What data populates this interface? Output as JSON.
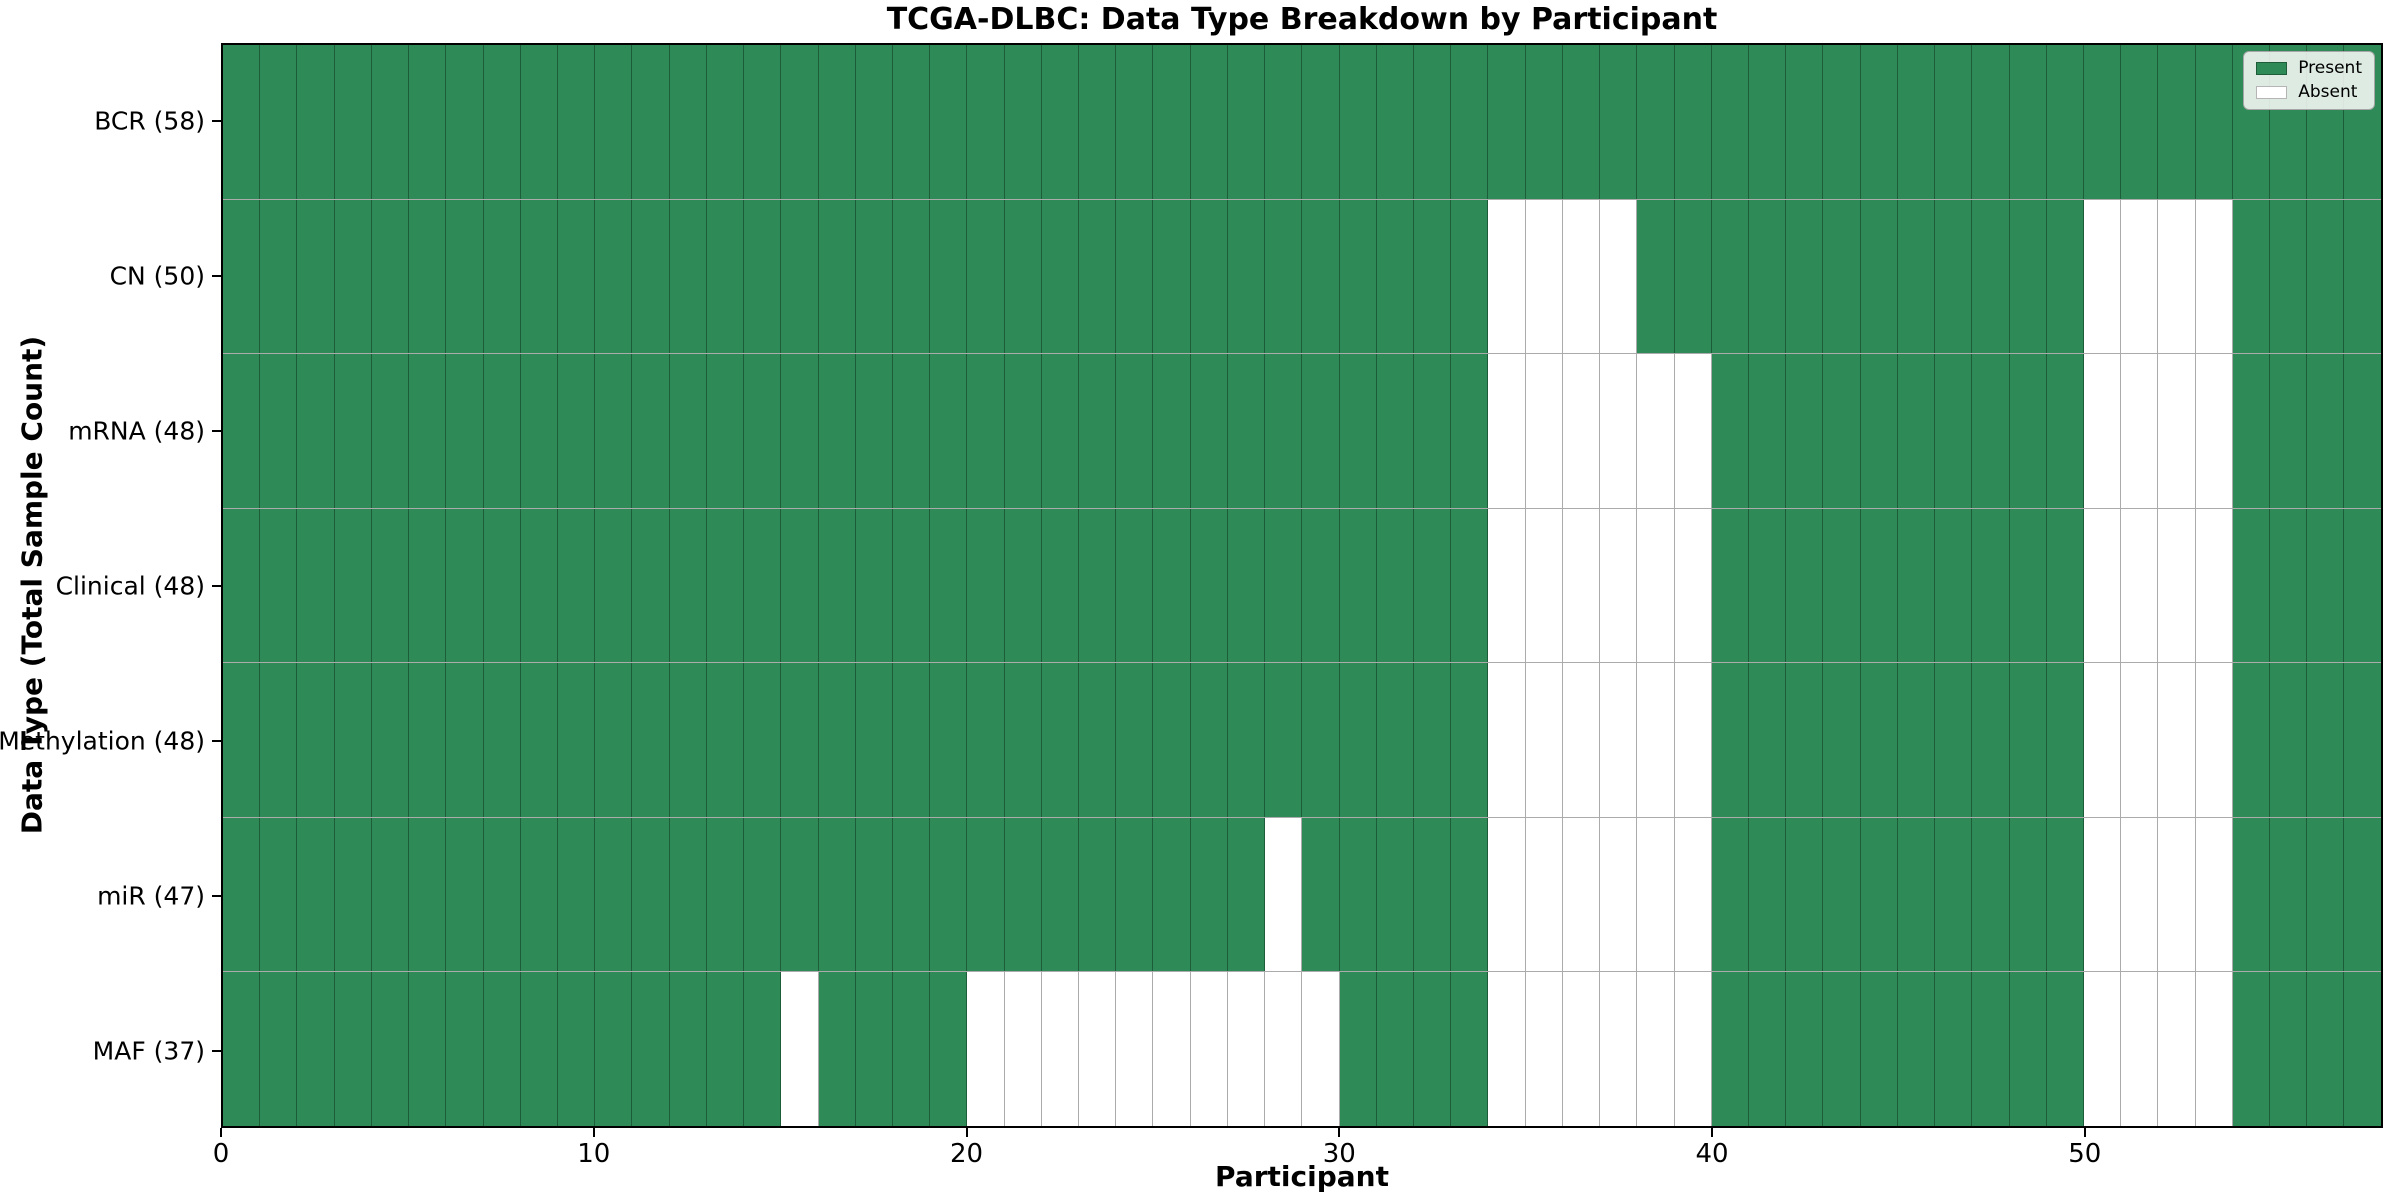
{
  "figure": {
    "title": "TCGA-DLBC: Data Type Breakdown by Participant",
    "x_axis_label": "Participant",
    "y_axis_label": "Data Type (Total Sample Count)"
  },
  "legend": {
    "position": "upper right",
    "entries": [
      {
        "label": "Present",
        "color": "#2e8b57"
      },
      {
        "label": "Absent",
        "color": "#ffffff"
      }
    ]
  },
  "chart_data": {
    "type": "heatmap",
    "title": "TCGA-DLBC: Data Type Breakdown by Participant",
    "xlabel": "Participant",
    "ylabel": "Data Type (Total Sample Count)",
    "n_participants": 58,
    "x_range": [
      0,
      58
    ],
    "x_ticks": [
      0,
      10,
      20,
      30,
      40,
      50
    ],
    "grid": true,
    "legend_position": "upper right",
    "colors": {
      "present": "#2e8b57",
      "absent": "#ffffff",
      "gridline": "rgba(0,0,0,0.33)"
    },
    "rows": [
      {
        "label": "BCR (58)",
        "data_type": "BCR",
        "total_sample_count": 58,
        "absent_participants": []
      },
      {
        "label": "CN (50)",
        "data_type": "CN",
        "total_sample_count": 50,
        "absent_participants": [
          34,
          35,
          36,
          37,
          50,
          51,
          52,
          53
        ]
      },
      {
        "label": "mRNA (48)",
        "data_type": "mRNA",
        "total_sample_count": 48,
        "absent_participants": [
          34,
          35,
          36,
          37,
          38,
          39,
          50,
          51,
          52,
          53
        ]
      },
      {
        "label": "Clinical (48)",
        "data_type": "Clinical",
        "total_sample_count": 48,
        "absent_participants": [
          34,
          35,
          36,
          37,
          38,
          39,
          50,
          51,
          52,
          53
        ]
      },
      {
        "label": "Methylation (48)",
        "data_type": "Methylation",
        "total_sample_count": 48,
        "absent_participants": [
          34,
          35,
          36,
          37,
          38,
          39,
          50,
          51,
          52,
          53
        ]
      },
      {
        "label": "miR (47)",
        "data_type": "miR",
        "total_sample_count": 47,
        "absent_participants": [
          28,
          34,
          35,
          36,
          37,
          38,
          39,
          50,
          51,
          52,
          53
        ]
      },
      {
        "label": "MAF (37)",
        "data_type": "MAF",
        "total_sample_count": 37,
        "absent_participants": [
          15,
          20,
          21,
          22,
          23,
          24,
          25,
          26,
          27,
          28,
          29,
          34,
          35,
          36,
          37,
          38,
          39,
          50,
          51,
          52,
          53
        ]
      }
    ]
  }
}
